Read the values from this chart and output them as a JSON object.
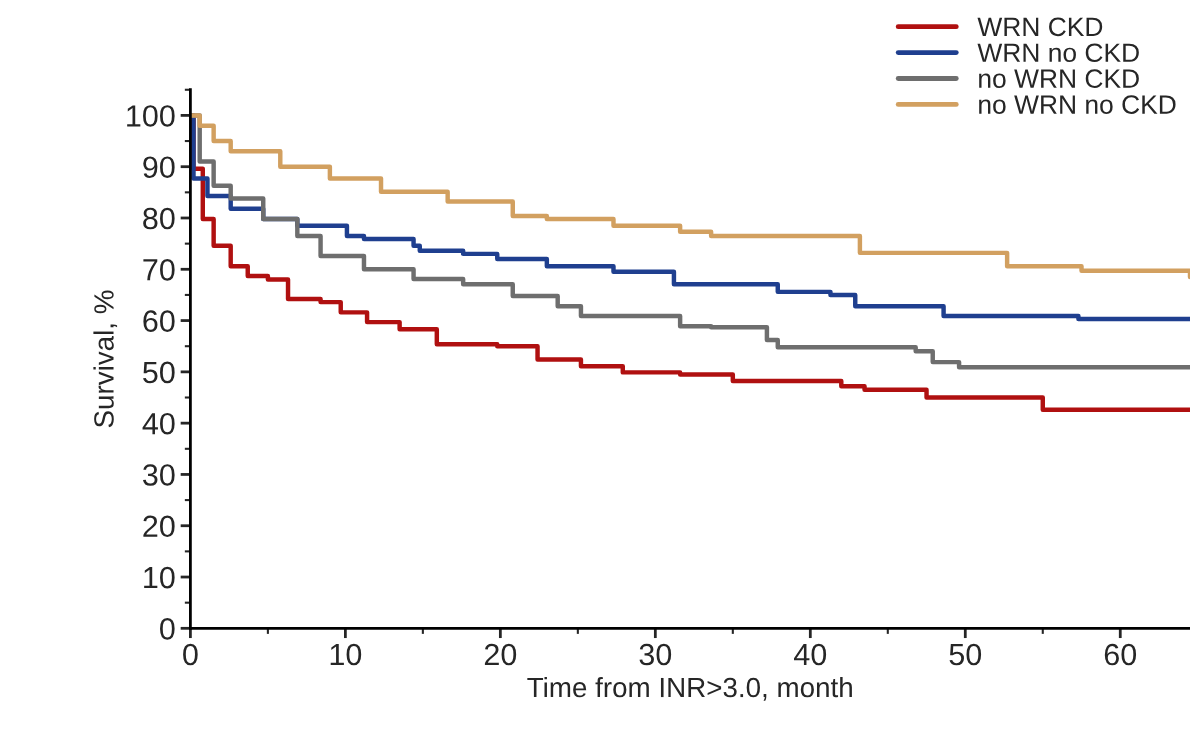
{
  "chart_data": {
    "type": "step",
    "xlabel": "Time from INR>3.0, month",
    "ylabel": "Survival, %",
    "xlim": [
      0,
      64.5
    ],
    "ylim": [
      0,
      105
    ],
    "xticks": [
      0,
      10,
      20,
      30,
      40,
      50,
      60
    ],
    "yticks": [
      0,
      10,
      20,
      30,
      40,
      50,
      60,
      70,
      80,
      90,
      100
    ],
    "grid": false,
    "legend": "top right",
    "line_style": "solid",
    "marker": "none",
    "series": [
      {
        "name": "WRN CKD",
        "color": "#b01010",
        "x": [
          0,
          0.2,
          0.8,
          1.5,
          2.6,
          3.7,
          5,
          6.3,
          8.4,
          9.7,
          11.4,
          13.5,
          15.9,
          19.8,
          22.4,
          25.2,
          27.9,
          31.6,
          35,
          42,
          43.5,
          47.5,
          54.9,
          55,
          64.5
        ],
        "values": [
          100,
          89.6,
          79.8,
          74.6,
          70.6,
          68.7,
          68,
          64.2,
          63.6,
          61.6,
          59.7,
          58.3,
          55.4,
          55,
          52.4,
          51.1,
          49.9,
          49.5,
          48.2,
          47.2,
          46.5,
          45,
          45,
          42.6,
          42.6
        ]
      },
      {
        "name": "WRN no CKD",
        "color": "#1f3f8f",
        "x": [
          0,
          0.2,
          1.1,
          2.6,
          4.7,
          6.9,
          10.1,
          11.2,
          14.4,
          14.8,
          17.6,
          19.8,
          23,
          27.3,
          31.2,
          37.9,
          41.3,
          42.9,
          46.3,
          48.6,
          56.6,
          57.3,
          64.5
        ],
        "values": [
          100,
          87.7,
          84.3,
          81.8,
          79.8,
          78.5,
          76.5,
          75.9,
          74.6,
          73.6,
          73,
          72,
          70.6,
          69.5,
          67.1,
          65.6,
          65,
          62.8,
          62.8,
          60.9,
          60.9,
          60.3,
          60.3
        ]
      },
      {
        "name": "no WRN CKD",
        "color": "#6e6e6e",
        "x": [
          0,
          0.6,
          1.5,
          2.6,
          4.7,
          6.9,
          8.4,
          11.2,
          14.4,
          17.6,
          20.8,
          23.7,
          25.2,
          31.6,
          33.6,
          37.2,
          37.9,
          46.8,
          47.9,
          49.6,
          64.5
        ],
        "values": [
          100,
          91,
          86.3,
          83.8,
          79.8,
          76.5,
          72.6,
          70,
          68.1,
          67.1,
          64.8,
          62.8,
          60.9,
          58.9,
          58.7,
          56.2,
          54.8,
          54,
          51.9,
          50.9,
          50.9
        ]
      },
      {
        "name": "no WRN no CKD",
        "color": "#d2a060",
        "x": [
          0,
          0.6,
          1.5,
          2.6,
          5.8,
          9,
          12.3,
          16.6,
          20.8,
          23,
          27.3,
          31.6,
          33.6,
          43.2,
          52.7,
          57.5,
          64.5
        ],
        "values": [
          100,
          98,
          95,
          93,
          90,
          87.7,
          85.1,
          83.2,
          80.4,
          79.8,
          78.5,
          77.3,
          76.5,
          73.2,
          70.6,
          69.7,
          68.5
        ]
      }
    ]
  }
}
